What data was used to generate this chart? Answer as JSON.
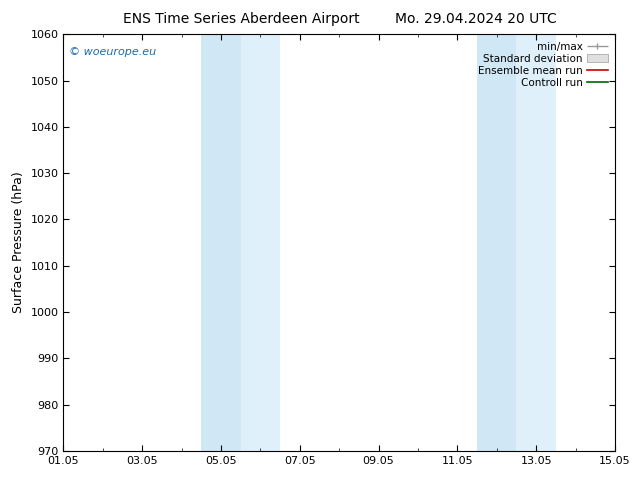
{
  "title_left": "ENS Time Series Aberdeen Airport",
  "title_right": "Mo. 29.04.2024 20 UTC",
  "ylabel": "Surface Pressure (hPa)",
  "ylim": [
    970,
    1060
  ],
  "yticks": [
    970,
    980,
    990,
    1000,
    1010,
    1020,
    1030,
    1040,
    1050,
    1060
  ],
  "xlim_start": 0,
  "xlim_end": 14,
  "xtick_positions": [
    0,
    2,
    4,
    6,
    8,
    10,
    12,
    14
  ],
  "xtick_labels": [
    "01.05",
    "03.05",
    "05.05",
    "07.05",
    "09.05",
    "11.05",
    "13.05",
    "15.05"
  ],
  "shaded_bands": [
    [
      {
        "xmin": 3.5,
        "xmax": 4.5
      },
      {
        "xmin": 4.5,
        "xmax": 5.5
      }
    ],
    [
      {
        "xmin": 10.5,
        "xmax": 11.5
      },
      {
        "xmin": 11.5,
        "xmax": 12.5
      }
    ]
  ],
  "band_color_1": "#d0e8f5",
  "band_color_2": "#e0f0fa",
  "watermark": "© woeurope.eu",
  "legend_labels": [
    "min/max",
    "Standard deviation",
    "Ensemble mean run",
    "Controll run"
  ],
  "background_color": "#ffffff",
  "title_fontsize": 10,
  "axis_label_fontsize": 9,
  "tick_fontsize": 8,
  "watermark_color": "#1a6aad",
  "legend_fontsize": 7.5
}
